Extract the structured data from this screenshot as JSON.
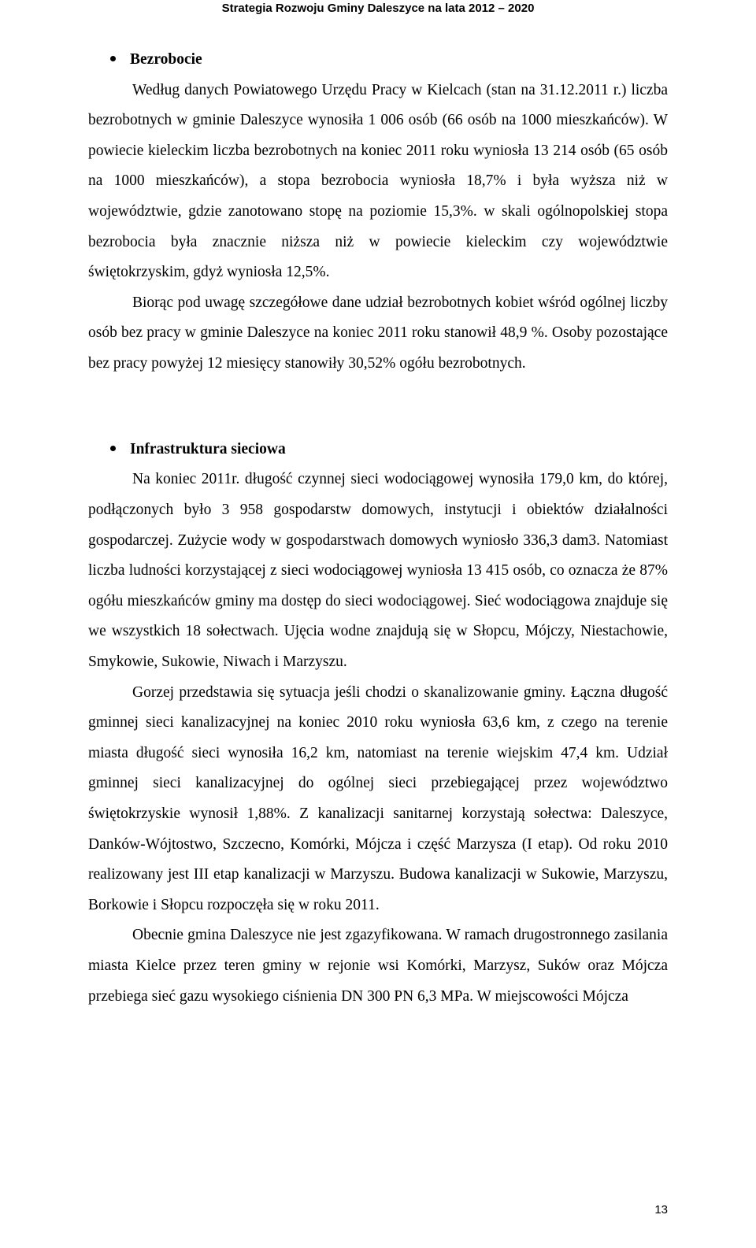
{
  "running_header": "Strategia Rozwoju Gminy Daleszyce na lata 2012 – 2020",
  "section1": {
    "title": "Bezrobocie",
    "p1": "Według danych Powiatowego Urzędu Pracy w Kielcach (stan na 31.12.2011 r.) liczba bezrobotnych w gminie Daleszyce wynosiła 1 006 osób (66 osób na 1000 mieszkańców). W powiecie kieleckim liczba bezrobotnych na koniec 2011 roku wyniosła 13 214 osób (65 osób na 1000 mieszkańców), a stopa bezrobocia wyniosła 18,7% i była wyższa niż w województwie, gdzie zanotowano stopę na poziomie 15,3%. w skali ogólnopolskiej stopa bezrobocia była znacznie niższa niż w powiecie kieleckim czy województwie świętokrzyskim, gdyż wyniosła 12,5%.",
    "p2": "Biorąc pod uwagę szczegółowe dane udział bezrobotnych kobiet wśród ogólnej liczby osób bez pracy w gminie Daleszyce na koniec 2011 roku stanowił 48,9 %. Osoby pozostające bez pracy powyżej 12 miesięcy stanowiły 30,52% ogółu bezrobotnych."
  },
  "section2": {
    "title": "Infrastruktura sieciowa",
    "p1": "Na koniec 2011r. długość czynnej sieci wodociągowej wynosiła 179,0 km, do której, podłączonych było 3 958 gospodarstw domowych, instytucji i obiektów działalności gospodarczej. Zużycie wody w gospodarstwach domowych wyniosło 336,3 dam3. Natomiast liczba ludności korzystającej z sieci wodociągowej wyniosła 13 415 osób, co oznacza że  87% ogółu mieszkańców gminy ma dostęp do sieci wodociągowej. Sieć wodociągowa znajduje się we wszystkich 18 sołectwach. Ujęcia wodne znajdują się w Słopcu, Mójczy, Niestachowie, Smykowie, Sukowie, Niwach i Marzyszu.",
    "p2": "Gorzej przedstawia się sytuacja jeśli chodzi o skanalizowanie gminy. Łączna długość gminnej sieci kanalizacyjnej na koniec 2010 roku wyniosła 63,6 km, z czego na terenie miasta długość sieci wynosiła 16,2 km, natomiast na terenie wiejskim 47,4 km. Udział gminnej sieci kanalizacyjnej do ogólnej sieci przebiegającej przez województwo świętokrzyskie wynosił 1,88%. Z kanalizacji sanitarnej korzystają sołectwa: Daleszyce, Danków-Wójtostwo, Szczecno, Komórki, Mójcza i część Marzysza (I etap). Od roku 2010 realizowany jest III etap kanalizacji w Marzyszu. Budowa kanalizacji w Sukowie, Marzyszu, Borkowie i Słopcu rozpoczęła się w roku 2011.",
    "p3": "Obecnie gmina Daleszyce nie jest zgazyfikowana. W ramach drugostronnego zasilania miasta Kielce przez teren gminy w rejonie wsi Komórki, Marzysz, Suków oraz Mójcza przebiega sieć gazu wysokiego ciśnienia DN 300 PN 6,3 MPa. W miejscowości Mójcza"
  },
  "page_number": "13"
}
